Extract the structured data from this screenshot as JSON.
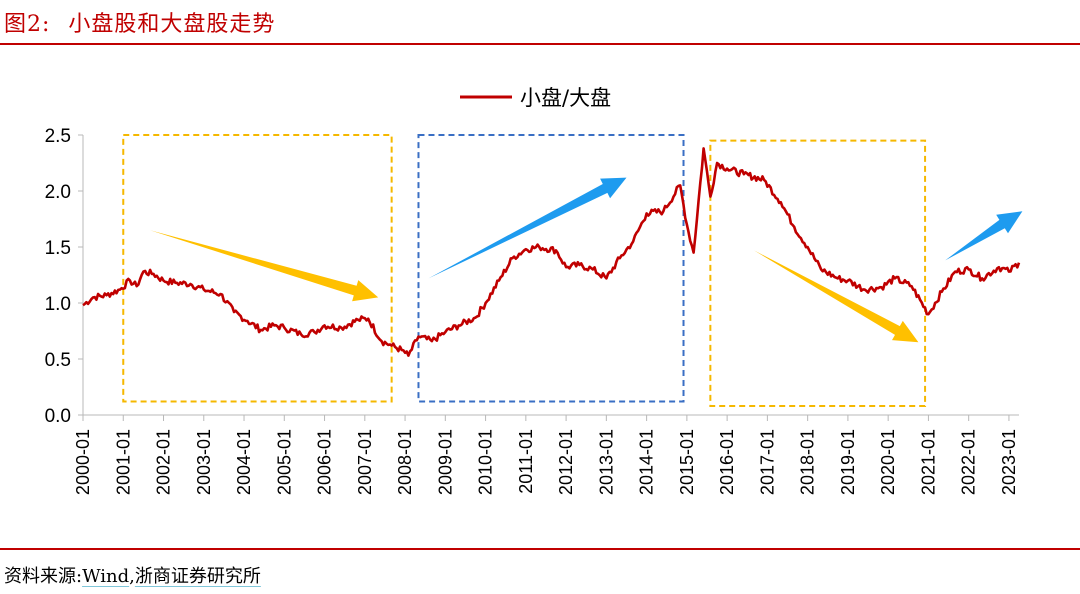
{
  "header": {
    "figure_number": "图2:",
    "title": "小盘股和大盘股走势"
  },
  "footer": {
    "source_label": "资料来源:",
    "source_wind": "Wind",
    "source_sep": ",",
    "source_org": "浙商证券研究所"
  },
  "colors": {
    "accent": "#c00000",
    "series": "#c00000",
    "yellow_box": "#f5b800",
    "blue_box": "#3a6fc4",
    "yellow_arrow": "#ffc000",
    "blue_arrow": "#1e9bef"
  },
  "chart_data": {
    "type": "line",
    "title": "",
    "xlabel": "",
    "ylabel": "",
    "legend": {
      "position": "top-center",
      "entries": [
        "小盘/大盘"
      ]
    },
    "ylim": [
      0.0,
      2.5
    ],
    "y_ticks": [
      "0.0",
      "0.5",
      "1.0",
      "1.5",
      "2.0",
      "2.5"
    ],
    "x_ticks": [
      "2000-01",
      "2001-01",
      "2002-01",
      "2003-01",
      "2004-01",
      "2005-01",
      "2006-01",
      "2007-01",
      "2008-01",
      "2009-01",
      "2010-01",
      "2011-01",
      "2012-01",
      "2013-01",
      "2014-01",
      "2015-01",
      "2016-01",
      "2017-01",
      "2018-01",
      "2019-01",
      "2020-01",
      "2021-01",
      "2022-01",
      "2023-01"
    ],
    "xlim": [
      "2000-01",
      "2023-04"
    ],
    "grid": false,
    "series": [
      {
        "name": "小盘/大盘",
        "points": [
          [
            "2000-01",
            0.98
          ],
          [
            "2000-04",
            1.05
          ],
          [
            "2000-08",
            1.07
          ],
          [
            "2000-12",
            1.12
          ],
          [
            "2001-03",
            1.2
          ],
          [
            "2001-05",
            1.15
          ],
          [
            "2001-07",
            1.28
          ],
          [
            "2001-10",
            1.26
          ],
          [
            "2002-01",
            1.2
          ],
          [
            "2002-05",
            1.18
          ],
          [
            "2002-09",
            1.17
          ],
          [
            "2003-01",
            1.12
          ],
          [
            "2003-06",
            1.08
          ],
          [
            "2003-10",
            0.92
          ],
          [
            "2004-02",
            0.84
          ],
          [
            "2004-06",
            0.76
          ],
          [
            "2004-10",
            0.8
          ],
          [
            "2005-01",
            0.78
          ],
          [
            "2005-06",
            0.72
          ],
          [
            "2005-10",
            0.74
          ],
          [
            "2006-01",
            0.8
          ],
          [
            "2006-06",
            0.78
          ],
          [
            "2006-11",
            0.85
          ],
          [
            "2007-02",
            0.86
          ],
          [
            "2007-06",
            0.66
          ],
          [
            "2007-09",
            0.62
          ],
          [
            "2007-12",
            0.58
          ],
          [
            "2008-02",
            0.53
          ],
          [
            "2008-05",
            0.7
          ],
          [
            "2008-09",
            0.66
          ],
          [
            "2009-01",
            0.74
          ],
          [
            "2009-05",
            0.8
          ],
          [
            "2009-10",
            0.87
          ],
          [
            "2010-01",
            1.0
          ],
          [
            "2010-05",
            1.2
          ],
          [
            "2010-09",
            1.4
          ],
          [
            "2011-01",
            1.48
          ],
          [
            "2011-05",
            1.5
          ],
          [
            "2011-10",
            1.47
          ],
          [
            "2012-01",
            1.32
          ],
          [
            "2012-05",
            1.34
          ],
          [
            "2012-09",
            1.3
          ],
          [
            "2013-01",
            1.22
          ],
          [
            "2013-05",
            1.4
          ],
          [
            "2013-09",
            1.55
          ],
          [
            "2014-01",
            1.8
          ],
          [
            "2014-06",
            1.82
          ],
          [
            "2014-11",
            2.05
          ],
          [
            "2015-01",
            1.7
          ],
          [
            "2015-03",
            1.45
          ],
          [
            "2015-06",
            2.38
          ],
          [
            "2015-08",
            1.95
          ],
          [
            "2015-10",
            2.25
          ],
          [
            "2016-01",
            2.2
          ],
          [
            "2016-06",
            2.15
          ],
          [
            "2016-12",
            2.1
          ],
          [
            "2017-05",
            1.9
          ],
          [
            "2017-09",
            1.68
          ],
          [
            "2018-01",
            1.5
          ],
          [
            "2018-05",
            1.3
          ],
          [
            "2018-10",
            1.22
          ],
          [
            "2019-01",
            1.2
          ],
          [
            "2019-06",
            1.12
          ],
          [
            "2019-11",
            1.14
          ],
          [
            "2020-03",
            1.22
          ],
          [
            "2020-08",
            1.15
          ],
          [
            "2021-01",
            0.9
          ],
          [
            "2021-05",
            1.1
          ],
          [
            "2021-09",
            1.28
          ],
          [
            "2022-01",
            1.3
          ],
          [
            "2022-05",
            1.22
          ],
          [
            "2022-10",
            1.32
          ],
          [
            "2023-01",
            1.28
          ],
          [
            "2023-04",
            1.36
          ]
        ]
      }
    ],
    "annotations": [
      {
        "type": "box",
        "style": "yellow-dashed",
        "x": [
          "2001-01",
          "2007-09"
        ],
        "y": [
          0.12,
          2.5
        ]
      },
      {
        "type": "box",
        "style": "blue-dashed",
        "x": [
          "2008-05",
          "2014-12"
        ],
        "y": [
          0.12,
          2.5
        ]
      },
      {
        "type": "box",
        "style": "yellow-dashed",
        "x": [
          "2015-08",
          "2020-12"
        ],
        "y": [
          0.08,
          2.45
        ]
      },
      {
        "type": "arrow",
        "style": "yellow",
        "from": [
          "2001-09",
          1.65
        ],
        "to": [
          "2007-05",
          1.05
        ]
      },
      {
        "type": "arrow",
        "style": "blue",
        "from": [
          "2008-08",
          1.22
        ],
        "to": [
          "2013-07",
          2.12
        ]
      },
      {
        "type": "arrow",
        "style": "yellow",
        "from": [
          "2016-09",
          1.47
        ],
        "to": [
          "2020-10",
          0.65
        ]
      },
      {
        "type": "arrow",
        "style": "blue",
        "from": [
          "2021-06",
          1.38
        ],
        "to": [
          "2023-05",
          1.82
        ]
      }
    ]
  }
}
